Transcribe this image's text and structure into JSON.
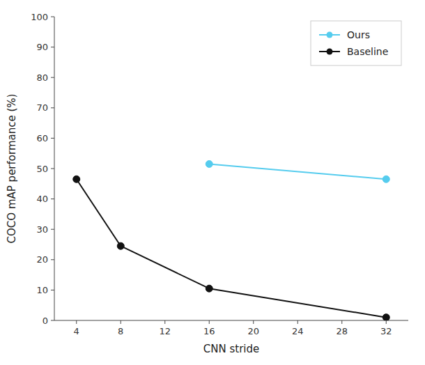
{
  "chart_data": {
    "type": "line",
    "xlabel": "CNN stride",
    "ylabel": "COCO mAP performance (%)",
    "series": [
      {
        "name": "Ours",
        "color": "#55CCEE",
        "marker": "o",
        "x": [
          16,
          32
        ],
        "values": [
          51.5,
          46.5
        ]
      },
      {
        "name": "Baseline",
        "color": "#111111",
        "marker": "o",
        "x": [
          4,
          8,
          16,
          32
        ],
        "values": [
          46.5,
          24.5,
          10.5,
          1.0
        ]
      }
    ],
    "xlim": [
      2,
      34
    ],
    "ylim": [
      0,
      100
    ],
    "xticks": [
      4,
      8,
      12,
      16,
      20,
      24,
      28,
      32
    ],
    "yticks": [
      0,
      10,
      20,
      30,
      40,
      50,
      60,
      70,
      80,
      90,
      100
    ],
    "grid": false,
    "legend": "upper right"
  }
}
